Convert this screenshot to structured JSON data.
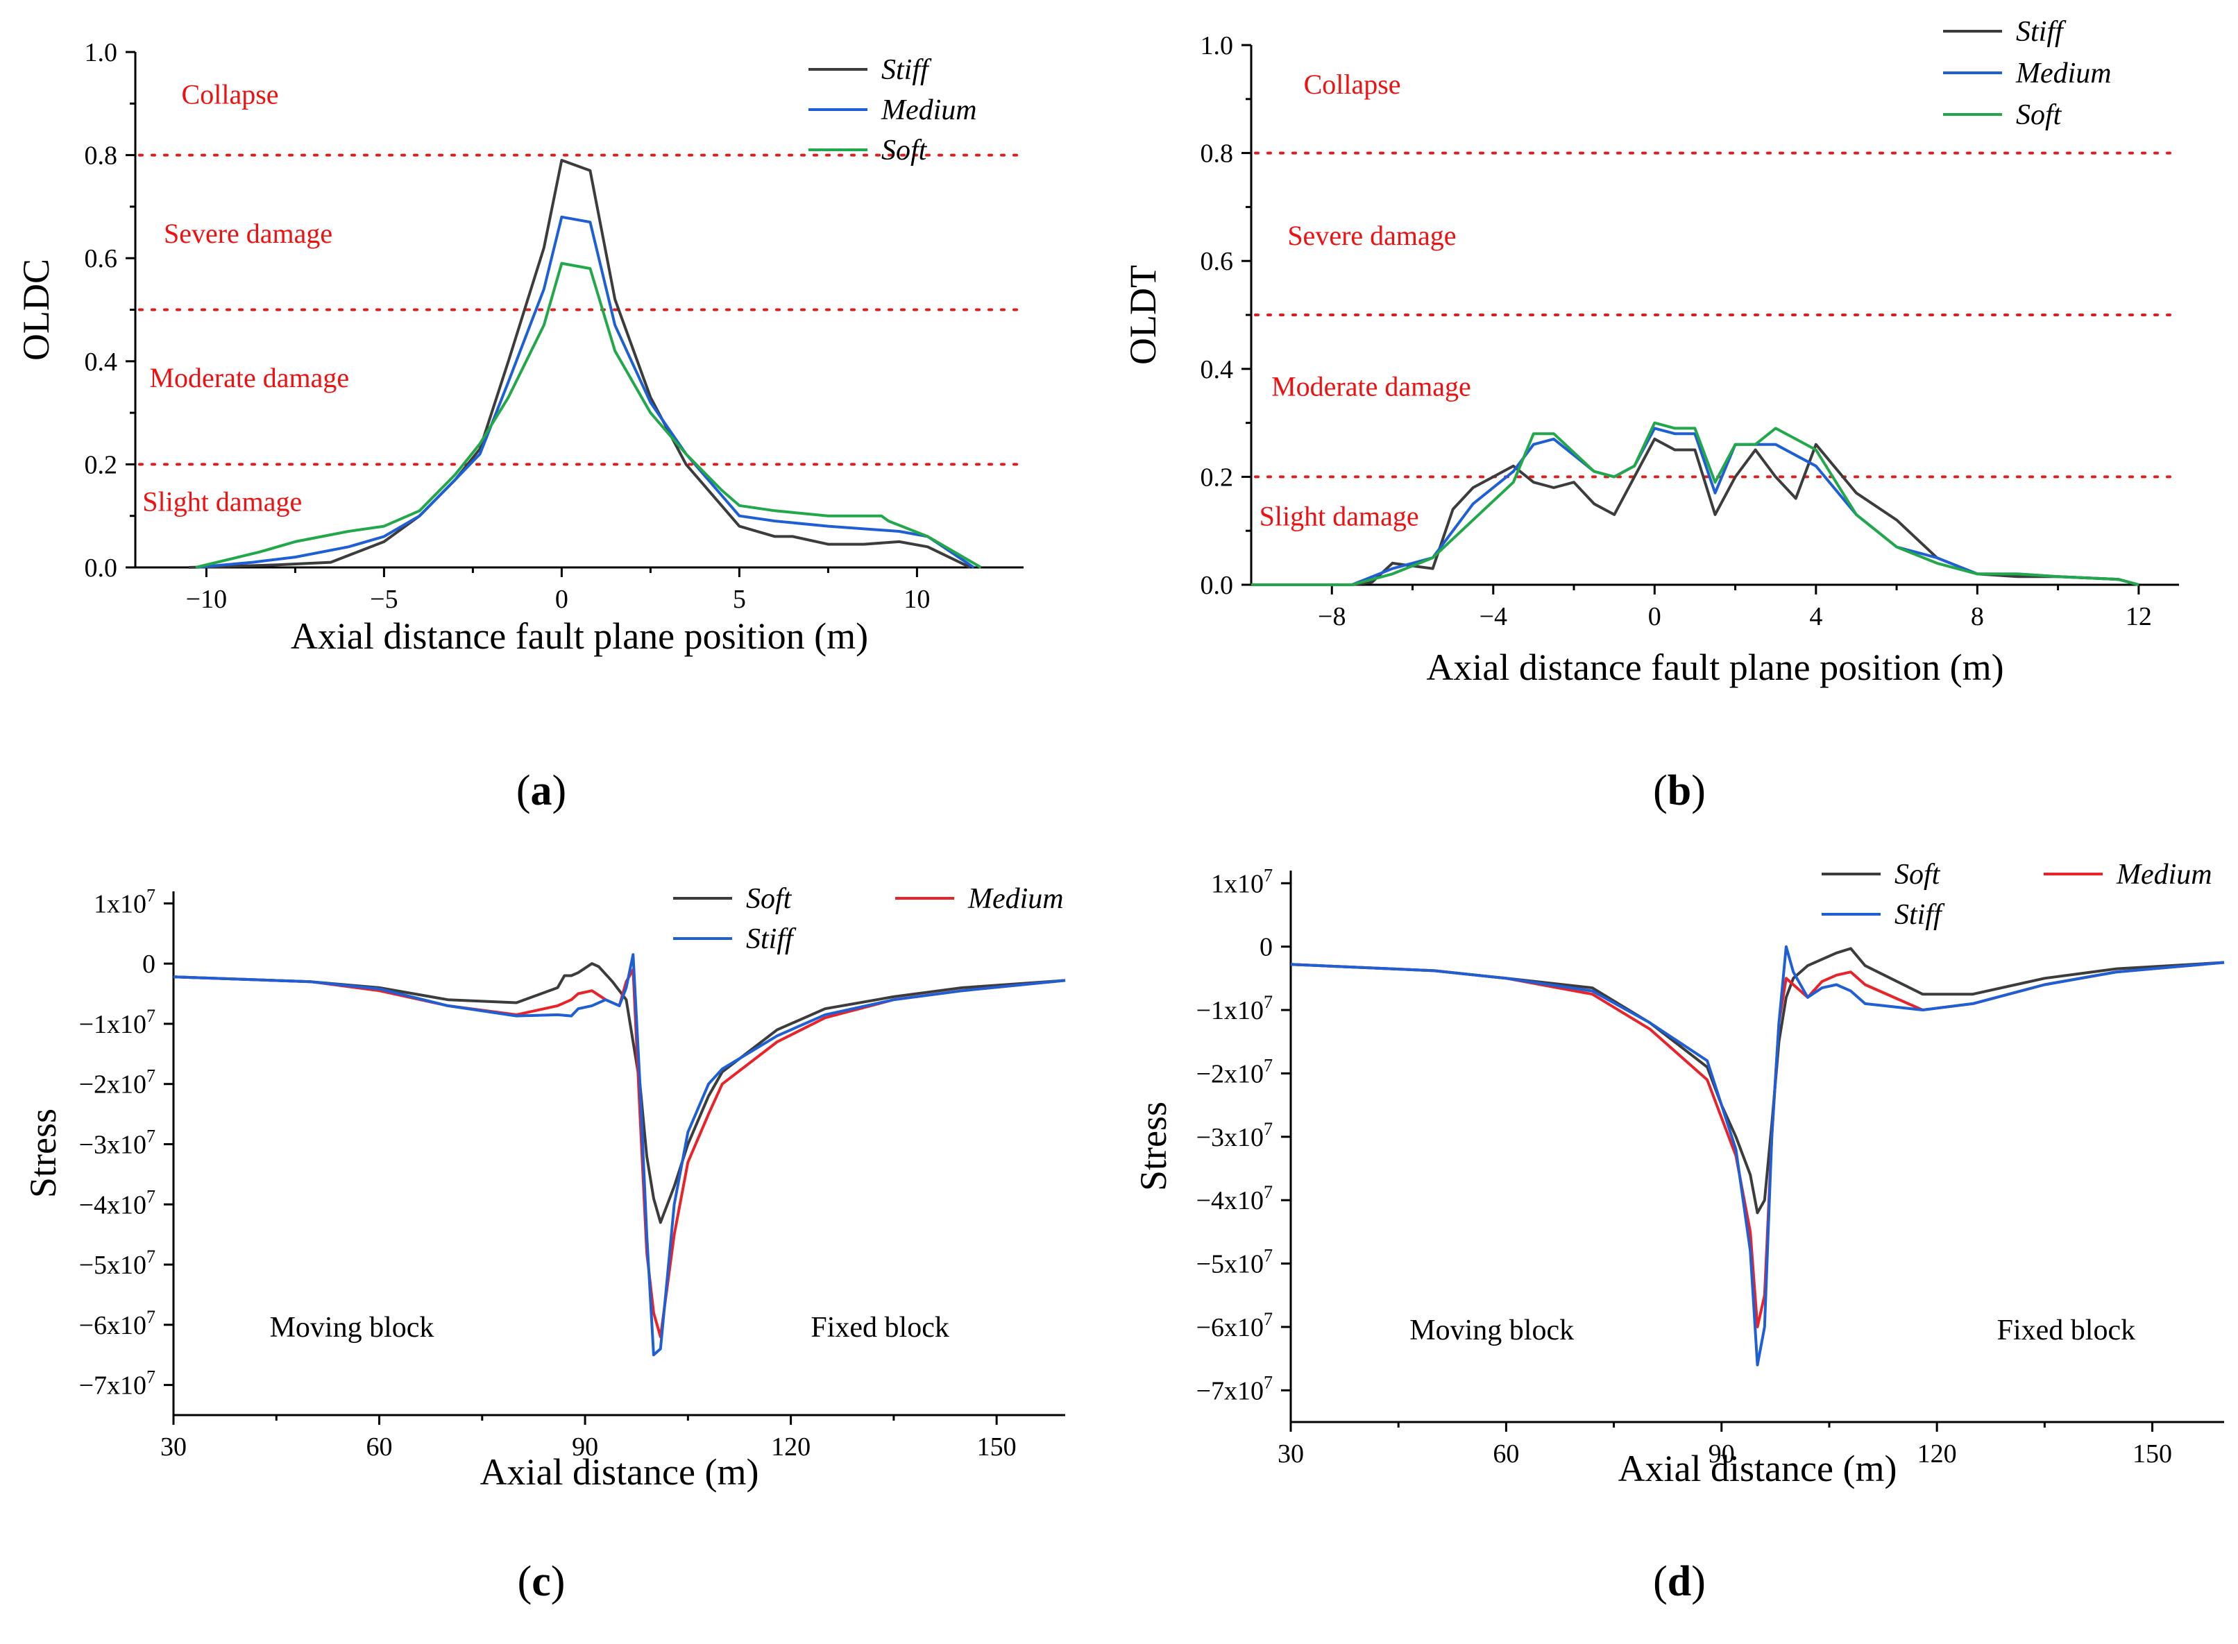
{
  "colors": {
    "stiff": "#3c3c3c",
    "medium": "#1f5fd6",
    "soft": "#22a74a",
    "red": "#e8232a",
    "threshold": "#e21b1b"
  },
  "chart_data": [
    {
      "id": "a",
      "type": "line",
      "panel_label": "a",
      "xlabel": "Axial distance fault plane position (m)",
      "ylabel": "OLDC",
      "xlim": [
        -12,
        13
      ],
      "ylim": [
        0,
        1.0
      ],
      "xticks": [
        -10,
        -5,
        0,
        5,
        10
      ],
      "yticks": [
        0.0,
        0.2,
        0.4,
        0.6,
        0.8,
        1.0
      ],
      "ytick_labels": [
        "0.0",
        "0.2",
        "0.4",
        "0.6",
        "0.8",
        "1.0"
      ],
      "grid": false,
      "legend_position": "top-right",
      "thresholds": [
        0.2,
        0.5,
        0.8
      ],
      "zone_labels": [
        {
          "text": "Collapse",
          "x": -10.7,
          "y": 0.9
        },
        {
          "text": "Severe damage",
          "x": -11.2,
          "y": 0.63
        },
        {
          "text": "Moderate damage",
          "x": -11.6,
          "y": 0.35
        },
        {
          "text": "Slight damage",
          "x": -11.8,
          "y": 0.11
        }
      ],
      "series": [
        {
          "name": "Stiff",
          "color_key": "stiff",
          "x": [
            -10.5,
            -8,
            -6.5,
            -5,
            -4,
            -3,
            -2.3,
            -1.5,
            -0.5,
            0,
            0.8,
            1.5,
            2.5,
            3.5,
            4.5,
            5,
            6,
            6.5,
            7.5,
            8.5,
            9.5,
            10.3,
            11.5
          ],
          "y": [
            0,
            0.005,
            0.01,
            0.05,
            0.1,
            0.17,
            0.23,
            0.4,
            0.62,
            0.79,
            0.77,
            0.52,
            0.33,
            0.2,
            0.12,
            0.08,
            0.06,
            0.06,
            0.045,
            0.045,
            0.05,
            0.04,
            0
          ]
        },
        {
          "name": "Medium",
          "color_key": "medium",
          "x": [
            -10.3,
            -8.7,
            -7.5,
            -6,
            -5,
            -4,
            -3,
            -2.3,
            -1.5,
            -0.5,
            0,
            0.8,
            1.5,
            2.5,
            3.5,
            4.5,
            5,
            6,
            7.5,
            9.5,
            10.3,
            11.6
          ],
          "y": [
            0,
            0.01,
            0.02,
            0.04,
            0.06,
            0.1,
            0.17,
            0.22,
            0.36,
            0.54,
            0.68,
            0.67,
            0.47,
            0.32,
            0.22,
            0.14,
            0.1,
            0.09,
            0.08,
            0.07,
            0.06,
            0
          ]
        },
        {
          "name": "Soft",
          "color_key": "soft",
          "x": [
            -10.3,
            -8.5,
            -7.5,
            -6,
            -5,
            -4,
            -3,
            -2.3,
            -1.5,
            -0.5,
            0,
            0.8,
            1.5,
            2.5,
            3.5,
            4.5,
            5,
            6,
            7.5,
            9,
            9.2,
            10.3,
            11.8
          ],
          "y": [
            0,
            0.03,
            0.05,
            0.07,
            0.08,
            0.11,
            0.18,
            0.24,
            0.33,
            0.47,
            0.59,
            0.58,
            0.42,
            0.3,
            0.22,
            0.15,
            0.12,
            0.11,
            0.1,
            0.1,
            0.09,
            0.06,
            0
          ]
        }
      ]
    },
    {
      "id": "b",
      "type": "line",
      "panel_label": "b",
      "xlabel": "Axial distance fault plane position (m)",
      "ylabel": "OLDT",
      "xlim": [
        -10,
        13
      ],
      "ylim": [
        0,
        1.0
      ],
      "xticks": [
        -8,
        -4,
        0,
        4,
        8,
        12
      ],
      "yticks": [
        0.0,
        0.2,
        0.4,
        0.6,
        0.8,
        1.0
      ],
      "ytick_labels": [
        "0.0",
        "0.2",
        "0.4",
        "0.6",
        "0.8",
        "1.0"
      ],
      "grid": false,
      "legend_position": "top-right",
      "thresholds": [
        0.2,
        0.5,
        0.8
      ],
      "zone_labels": [
        {
          "text": "Collapse",
          "x": -8.7,
          "y": 0.91
        },
        {
          "text": "Severe damage",
          "x": -9.1,
          "y": 0.63
        },
        {
          "text": "Moderate damage",
          "x": -9.5,
          "y": 0.35
        },
        {
          "text": "Slight damage",
          "x": -9.8,
          "y": 0.11
        }
      ],
      "series": [
        {
          "name": "Stiff",
          "color_key": "stiff",
          "x": [
            -10,
            -7.5,
            -7,
            -6.5,
            -5.5,
            -5,
            -4.5,
            -3.5,
            -3,
            -2.5,
            -2,
            -1.5,
            -1,
            -0.5,
            0,
            0.5,
            1,
            1.5,
            2,
            2.5,
            3,
            3.5,
            4,
            5,
            6,
            7,
            8,
            9,
            10,
            11.5,
            12
          ],
          "y": [
            0,
            0,
            0.005,
            0.04,
            0.03,
            0.14,
            0.18,
            0.22,
            0.19,
            0.18,
            0.19,
            0.15,
            0.13,
            0.2,
            0.27,
            0.25,
            0.25,
            0.13,
            0.2,
            0.25,
            0.2,
            0.16,
            0.26,
            0.17,
            0.12,
            0.05,
            0.02,
            0.015,
            0.015,
            0.01,
            0
          ]
        },
        {
          "name": "Medium",
          "color_key": "medium",
          "x": [
            -10,
            -7.5,
            -6.5,
            -5.5,
            -4.5,
            -3.5,
            -3,
            -2.5,
            -1.5,
            -1,
            -0.5,
            0,
            0.5,
            1,
            1.5,
            2,
            2.5,
            3,
            3.5,
            4,
            5,
            6,
            7,
            8,
            9,
            10,
            11.5,
            12
          ],
          "y": [
            0,
            0,
            0.03,
            0.05,
            0.15,
            0.21,
            0.26,
            0.27,
            0.21,
            0.2,
            0.22,
            0.29,
            0.28,
            0.28,
            0.17,
            0.26,
            0.26,
            0.26,
            0.24,
            0.22,
            0.13,
            0.07,
            0.05,
            0.02,
            0.02,
            0.015,
            0.01,
            0
          ]
        },
        {
          "name": "Soft",
          "color_key": "soft",
          "x": [
            -10,
            -7.5,
            -6.5,
            -5.5,
            -4.5,
            -3.5,
            -3,
            -2.5,
            -1.5,
            -1,
            -0.5,
            0,
            0.5,
            1,
            1.5,
            2,
            2.5,
            3,
            3.5,
            4,
            5,
            6,
            7,
            8,
            9,
            10,
            11.5,
            12
          ],
          "y": [
            0,
            0,
            0.02,
            0.05,
            0.12,
            0.19,
            0.28,
            0.28,
            0.21,
            0.2,
            0.22,
            0.3,
            0.29,
            0.29,
            0.19,
            0.26,
            0.26,
            0.29,
            0.27,
            0.25,
            0.13,
            0.07,
            0.04,
            0.02,
            0.02,
            0.015,
            0.01,
            0
          ]
        }
      ]
    },
    {
      "id": "c",
      "type": "line",
      "panel_label": "c",
      "xlabel": "Axial distance (m)",
      "ylabel": "Stress",
      "xlim": [
        30,
        160
      ],
      "ylim": [
        -75000000,
        12000000
      ],
      "xticks": [
        30,
        60,
        90,
        120,
        150
      ],
      "yticks": [
        10000000,
        0,
        -10000000,
        -20000000,
        -30000000,
        -40000000,
        -50000000,
        -60000000,
        -70000000
      ],
      "ytick_labels": [
        "1x10^7",
        "0",
        "−1x10^7",
        "−2x10^7",
        "−3x10^7",
        "−4x10^7",
        "−5x10^7",
        "−6x10^7",
        "−7x10^7"
      ],
      "grid": false,
      "legend_position": "top-right",
      "block_labels": [
        {
          "text": "Moving block",
          "x": 56,
          "y": -62000000
        },
        {
          "text": "Fixed block",
          "x": 133,
          "y": -62000000
        }
      ],
      "series": [
        {
          "name": "Soft",
          "color_key": "stiff",
          "x": [
            30,
            50,
            60,
            70,
            80,
            86,
            87,
            88,
            89,
            91,
            92,
            94,
            96,
            98,
            99,
            100,
            101,
            103,
            105,
            108,
            110,
            118,
            125,
            135,
            145,
            160
          ],
          "y": [
            -2200000,
            -3000000,
            -4000000,
            -6000000,
            -6500000,
            -4000000,
            -2000000,
            -2000000,
            -1500000,
            0,
            -500000,
            -3000000,
            -6000000,
            -20000000,
            -32000000,
            -39000000,
            -43000000,
            -37000000,
            -30000000,
            -22000000,
            -18000000,
            -11000000,
            -7500000,
            -5500000,
            -4000000,
            -2800000
          ]
        },
        {
          "name": "Medium",
          "color_key": "red",
          "x": [
            30,
            50,
            60,
            70,
            80,
            86,
            88,
            89,
            91,
            93,
            95,
            96,
            97,
            98,
            99,
            100,
            101,
            103,
            105,
            108,
            110,
            118,
            125,
            135,
            145,
            160
          ],
          "y": [
            -2200000,
            -3000000,
            -4500000,
            -7000000,
            -8500000,
            -7000000,
            -6000000,
            -5000000,
            -4500000,
            -6000000,
            -7000000,
            -3000000,
            -1000000,
            -25000000,
            -48000000,
            -58000000,
            -62000000,
            -45000000,
            -33000000,
            -25000000,
            -20000000,
            -13000000,
            -9000000,
            -6000000,
            -4500000,
            -2800000
          ]
        },
        {
          "name": "Stiff",
          "color_key": "medium",
          "x": [
            30,
            50,
            60,
            70,
            80,
            86,
            88,
            89,
            91,
            93,
            95,
            96,
            97,
            98,
            99,
            100,
            101,
            103,
            105,
            108,
            110,
            118,
            125,
            135,
            145,
            160
          ],
          "y": [
            -2200000,
            -3000000,
            -4200000,
            -7000000,
            -8700000,
            -8500000,
            -8700000,
            -7500000,
            -7000000,
            -6000000,
            -7000000,
            -4000000,
            1500000,
            -20000000,
            -45000000,
            -65000000,
            -64000000,
            -40000000,
            -28000000,
            -20000000,
            -17500000,
            -12000000,
            -8500000,
            -6000000,
            -4500000,
            -2800000
          ]
        }
      ]
    },
    {
      "id": "d",
      "type": "line",
      "panel_label": "d",
      "xlabel": "Axial distance (m)",
      "ylabel": "Stress",
      "xlim": [
        30,
        160
      ],
      "ylim": [
        -75000000,
        12000000
      ],
      "xticks": [
        30,
        60,
        90,
        120,
        150
      ],
      "yticks": [
        10000000,
        0,
        -10000000,
        -20000000,
        -30000000,
        -40000000,
        -50000000,
        -60000000,
        -70000000
      ],
      "ytick_labels": [
        "1x10^7",
        "0",
        "−1x10^7",
        "−2x10^7",
        "−3x10^7",
        "−4x10^7",
        "−5x10^7",
        "−6x10^7",
        "−7x10^7"
      ],
      "grid": false,
      "legend_position": "top-right",
      "block_labels": [
        {
          "text": "Moving block",
          "x": 58,
          "y": -62000000
        },
        {
          "text": "Fixed block",
          "x": 138,
          "y": -62000000
        }
      ],
      "series": [
        {
          "name": "Soft",
          "color_key": "stiff",
          "x": [
            30,
            50,
            60,
            72,
            80,
            88,
            90,
            92,
            94,
            95,
            96,
            97,
            98,
            99,
            100,
            102,
            104,
            106,
            108,
            110,
            118,
            125,
            135,
            145,
            160
          ],
          "y": [
            -2800000,
            -3800000,
            -5000000,
            -6500000,
            -12000000,
            -19000000,
            -25000000,
            -30000000,
            -36000000,
            -42000000,
            -40000000,
            -28000000,
            -15000000,
            -8000000,
            -5000000,
            -3000000,
            -2000000,
            -1000000,
            -300000,
            -3000000,
            -7500000,
            -7500000,
            -5000000,
            -3500000,
            -2500000
          ]
        },
        {
          "name": "Medium",
          "color_key": "red",
          "x": [
            30,
            50,
            60,
            72,
            80,
            88,
            90,
            92,
            94,
            95,
            96,
            97,
            98,
            99,
            100,
            102,
            104,
            106,
            108,
            110,
            118,
            125,
            135,
            145,
            160
          ],
          "y": [
            -2800000,
            -3800000,
            -5000000,
            -7500000,
            -13000000,
            -21000000,
            -27000000,
            -33000000,
            -45000000,
            -60000000,
            -55000000,
            -30000000,
            -12000000,
            -5000000,
            -6000000,
            -8000000,
            -5500000,
            -4500000,
            -4000000,
            -6000000,
            -10000000,
            -9000000,
            -6000000,
            -4000000,
            -2500000
          ]
        },
        {
          "name": "Stiff",
          "color_key": "medium",
          "x": [
            30,
            50,
            60,
            72,
            80,
            88,
            90,
            92,
            94,
            95,
            96,
            97,
            98,
            99,
            100,
            102,
            104,
            106,
            108,
            110,
            118,
            125,
            135,
            145,
            160
          ],
          "y": [
            -2800000,
            -3800000,
            -5000000,
            -7000000,
            -12000000,
            -18000000,
            -25000000,
            -32000000,
            -48000000,
            -66000000,
            -60000000,
            -30000000,
            -12000000,
            0,
            -4000000,
            -8000000,
            -6500000,
            -6000000,
            -7000000,
            -9000000,
            -10000000,
            -9000000,
            -6000000,
            -4000000,
            -2500000
          ]
        }
      ]
    }
  ]
}
